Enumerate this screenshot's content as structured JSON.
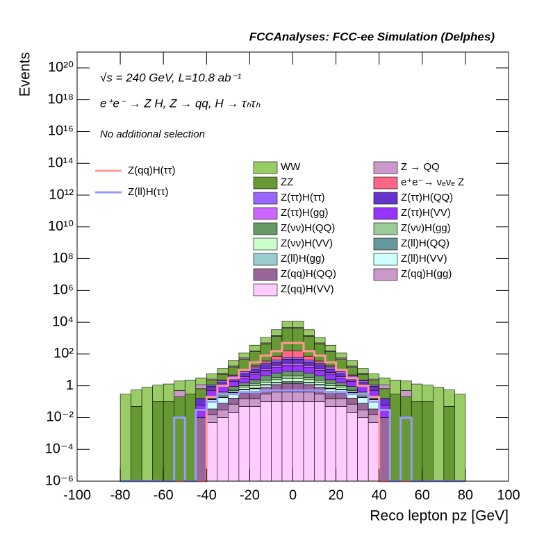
{
  "chart_data": {
    "type": "histogram",
    "title": "FCCAnalyses: FCC-ee Simulation (Delphes)",
    "annotations": [
      "√s = 240 GeV, L=10.8 ab⁻¹",
      "e⁺e⁻ → Z H, Z → qq, H → τₕτₕ",
      "No additional selection"
    ],
    "x_label": "Reco lepton pz [GeV]",
    "y_label": "Events",
    "log_y": true,
    "stacked": true,
    "xlim": [
      -100,
      100
    ],
    "xticks": [
      -100,
      -80,
      -60,
      -40,
      -20,
      0,
      20,
      40,
      60,
      80,
      100
    ],
    "ylim": [
      1e-06,
      1e+21
    ],
    "yticks": [
      {
        "value": 1e-06,
        "label": "10⁻⁶"
      },
      {
        "value": 0.0001,
        "label": "10⁻⁴"
      },
      {
        "value": 0.01,
        "label": "10⁻²"
      },
      1,
      {
        "value": 100.0,
        "label": "10²"
      },
      {
        "value": 10000.0,
        "label": "10⁴"
      },
      {
        "value": 1000000.0,
        "label": "10⁶"
      },
      {
        "value": 100000000.0,
        "label": "10⁸"
      },
      {
        "value": 10000000000.0,
        "label": "10¹⁰"
      },
      {
        "value": 1000000000000.0,
        "label": "10¹²"
      },
      {
        "value": 100000000000000.0,
        "label": "10¹⁴"
      },
      {
        "value": 1e+16,
        "label": "10¹⁶"
      },
      {
        "value": 1e+18,
        "label": "10¹⁸"
      },
      {
        "value": 1e+20,
        "label": "10²⁰"
      }
    ],
    "bins": [
      -80,
      -75,
      -70,
      -65,
      -60,
      -55,
      -50,
      -45,
      -40,
      -35,
      -30,
      -25,
      -20,
      -15,
      -10,
      -5,
      0,
      5,
      10,
      15,
      20,
      25,
      30,
      35,
      40,
      45,
      50,
      55,
      60,
      65,
      70,
      75,
      80
    ],
    "series": [
      {
        "name": "WW",
        "color": "#99cc66",
        "values": [
          0.3,
          0.5,
          0.8,
          1,
          1.2,
          1.5,
          2,
          2,
          3,
          6,
          20,
          60,
          200,
          600,
          2000,
          7000,
          7000,
          2000,
          600,
          200,
          60,
          20,
          6,
          3,
          2,
          2,
          1.5,
          1.2,
          1,
          0.8,
          0.5,
          0.3
        ]
      },
      {
        "name": "Z → QQ",
        "color": "#cc99cc",
        "values": [
          0,
          0,
          0,
          0,
          0,
          0.3,
          0,
          0.5,
          0.5,
          1,
          3,
          10,
          20,
          60,
          150,
          500,
          500,
          150,
          60,
          20,
          10,
          3,
          1,
          0.5,
          0.5,
          0,
          0.3,
          0,
          0,
          0,
          0,
          0
        ]
      },
      {
        "name": "ZZ",
        "color": "#669933",
        "values": [
          0,
          0.05,
          0,
          0.1,
          0.1,
          0.2,
          0.3,
          0.5,
          1,
          3,
          10,
          40,
          120,
          400,
          1200,
          4000,
          4000,
          1200,
          400,
          120,
          40,
          10,
          3,
          1,
          0.5,
          0.3,
          0.2,
          0.1,
          0.1,
          0,
          0.05,
          0
        ]
      },
      {
        "name": "e⁺e⁻→ νₑνₑ Z",
        "color": "#ff6688",
        "values": [
          0,
          0,
          0,
          0,
          0,
          0,
          0,
          0,
          0,
          0.2,
          0.5,
          1,
          3,
          10,
          30,
          100,
          100,
          30,
          10,
          3,
          1,
          0.5,
          0.2,
          0,
          0,
          0,
          0,
          0,
          0,
          0,
          0,
          0
        ]
      },
      {
        "name": "Z(ττ)H(ττ)",
        "color": "#9966ff",
        "values": [
          0,
          0,
          0,
          0,
          0,
          0,
          0,
          0,
          0.2,
          0.5,
          1,
          2,
          4,
          6,
          10,
          15,
          15,
          10,
          6,
          4,
          2,
          1,
          0.5,
          0.2,
          0,
          0,
          0,
          0,
          0,
          0,
          0,
          0
        ]
      },
      {
        "name": "Z(ττ)H(QQ)",
        "color": "#6633cc",
        "values": [
          0,
          0,
          0,
          0,
          0,
          0,
          0,
          0.1,
          0.3,
          0.5,
          1,
          2,
          4,
          8,
          12,
          20,
          20,
          12,
          8,
          4,
          2,
          1,
          0.5,
          0.3,
          0.1,
          0,
          0,
          0,
          0,
          0,
          0,
          0
        ]
      },
      {
        "name": "Z(ττ)H(gg)",
        "color": "#cc66ff",
        "values": [
          0,
          0,
          0,
          0,
          0,
          0,
          0,
          0,
          0.1,
          0.2,
          0.4,
          0.8,
          1.5,
          3,
          5,
          8,
          8,
          5,
          3,
          1.5,
          0.8,
          0.4,
          0.2,
          0.1,
          0,
          0,
          0,
          0,
          0,
          0,
          0,
          0
        ]
      },
      {
        "name": "Z(ττ)H(VV)",
        "color": "#9933ff",
        "values": [
          0,
          0,
          0,
          0,
          0,
          0,
          0,
          0.05,
          0.3,
          0.5,
          1,
          1.5,
          3,
          5,
          8,
          10,
          10,
          8,
          5,
          3,
          1.5,
          1,
          0.5,
          0.3,
          0.05,
          0,
          0,
          0,
          0,
          0,
          0,
          0
        ]
      },
      {
        "name": "Z(νν)H(QQ)",
        "color": "#669966",
        "values": [
          0,
          0,
          0,
          0,
          0,
          0,
          0,
          0,
          0.05,
          0.1,
          0.3,
          0.5,
          1,
          2,
          3,
          4,
          4,
          3,
          2,
          1,
          0.5,
          0.3,
          0.1,
          0.05,
          0,
          0,
          0,
          0,
          0,
          0,
          0,
          0
        ]
      },
      {
        "name": "Z(νν)H(gg)",
        "color": "#99cc99",
        "values": [
          0,
          0,
          0,
          0,
          0,
          0,
          0,
          0,
          0,
          0.05,
          0.1,
          0.2,
          0.4,
          0.6,
          1,
          1.5,
          1.5,
          1,
          0.6,
          0.4,
          0.2,
          0.1,
          0.05,
          0,
          0,
          0,
          0,
          0,
          0,
          0,
          0,
          0
        ]
      },
      {
        "name": "Z(νν)H(VV)",
        "color": "#ccffcc",
        "values": [
          0,
          0,
          0,
          0,
          0,
          0,
          0,
          0,
          0.02,
          0.05,
          0.1,
          0.2,
          0.3,
          0.5,
          0.8,
          1,
          1,
          0.8,
          0.5,
          0.3,
          0.2,
          0.1,
          0.05,
          0.02,
          0,
          0,
          0,
          0,
          0,
          0,
          0,
          0
        ]
      },
      {
        "name": "Z(ll)H(QQ)",
        "color": "#669999",
        "values": [
          0,
          0,
          0,
          0,
          0,
          0,
          0,
          0,
          0.01,
          0.02,
          0.03,
          0.05,
          0.05,
          0.08,
          0.1,
          0.1,
          0.1,
          0.1,
          0.08,
          0.05,
          0.05,
          0.03,
          0.02,
          0.01,
          0,
          0,
          0,
          0,
          0,
          0,
          0,
          0
        ]
      },
      {
        "name": "Z(ll)H(gg)",
        "color": "#99cccc",
        "values": [
          0,
          0,
          0,
          0,
          0,
          0,
          0,
          0,
          0.002,
          0.005,
          0.01,
          0.01,
          0.02,
          0.02,
          0.03,
          0.03,
          0.03,
          0.03,
          0.02,
          0.02,
          0.01,
          0.01,
          0.005,
          0.002,
          0,
          0,
          0,
          0,
          0,
          0,
          0,
          0
        ]
      },
      {
        "name": "Z(ll)H(VV)",
        "color": "#ccffff",
        "values": [
          0,
          0,
          0,
          0,
          0,
          0,
          0,
          0,
          0.1,
          0.1,
          0.2,
          0.2,
          0.2,
          0.3,
          0.3,
          0.3,
          0.3,
          0.3,
          0.3,
          0.2,
          0.2,
          0.2,
          0.1,
          0.1,
          0,
          0,
          0,
          0,
          0,
          0,
          0,
          0
        ]
      },
      {
        "name": "Z(qq)H(QQ)",
        "color": "#996699",
        "values": [
          0,
          0,
          0,
          0,
          0,
          0,
          0,
          0.01,
          0.02,
          0.05,
          0.1,
          0.2,
          0.3,
          0.5,
          0.8,
          1,
          1,
          0.8,
          0.5,
          0.3,
          0.2,
          0.1,
          0.05,
          0.02,
          0.01,
          0,
          0,
          0,
          0,
          0,
          0,
          0
        ]
      },
      {
        "name": "Z(qq)H(gg)",
        "color": "#cc99cc",
        "values": [
          0,
          0,
          0,
          0,
          0,
          0,
          0,
          0,
          0.01,
          0.02,
          0.05,
          0.1,
          0.1,
          0.2,
          0.3,
          0.3,
          0.3,
          0.3,
          0.2,
          0.1,
          0.1,
          0.05,
          0.02,
          0.01,
          0,
          0,
          0,
          0,
          0,
          0,
          0,
          0
        ]
      },
      {
        "name": "Z(qq)H(VV)",
        "color": "#ffccff",
        "values": [
          0,
          0,
          0,
          0,
          0,
          0,
          0,
          0,
          0.005,
          0.01,
          0.02,
          0.05,
          0.05,
          0.1,
          0.1,
          0.1,
          0.1,
          0.1,
          0.1,
          0.05,
          0.05,
          0.02,
          0.01,
          0.005,
          0,
          0,
          0,
          0,
          0,
          0,
          0,
          0
        ]
      }
    ],
    "overlays": [
      {
        "name": "Z(qq)H(ττ)",
        "color": "#ff9999",
        "values": [
          0,
          0,
          0,
          0,
          0,
          0,
          0,
          0,
          0.2,
          1,
          3,
          10,
          30,
          80,
          150,
          500,
          500,
          150,
          80,
          30,
          10,
          3,
          1,
          0.2,
          0,
          0,
          0,
          0,
          0,
          0,
          0,
          0
        ]
      },
      {
        "name": "Z(ll)H(ττ)",
        "color": "#9999ff",
        "values": [
          0,
          0,
          0,
          0,
          0,
          0.01,
          0,
          0.03,
          0.1,
          0.3,
          0.3,
          0.4,
          0.4,
          0.5,
          0.5,
          0.5,
          0.5,
          0.5,
          0.5,
          0.4,
          0.4,
          0.3,
          0.3,
          0.1,
          0.03,
          0,
          0.01,
          0,
          0,
          0,
          0,
          0
        ]
      }
    ]
  }
}
